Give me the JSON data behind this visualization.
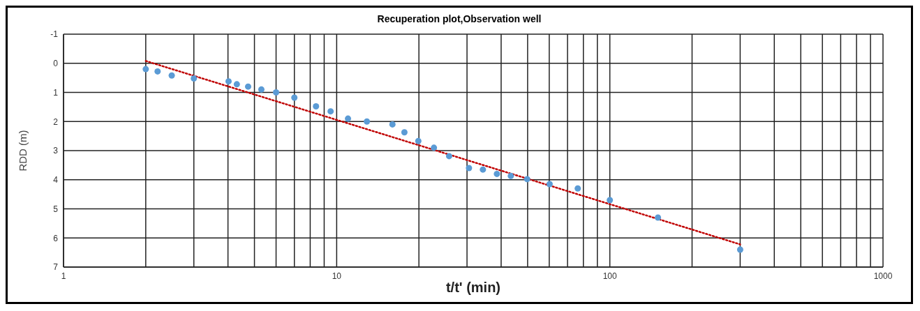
{
  "chart_data": {
    "type": "scatter",
    "title": "Recuperation plot,Observation well",
    "xlabel": "t/t' (min)",
    "ylabel": "RDD (m)",
    "log": "x",
    "xlim": [
      1,
      1000
    ],
    "xticks": [
      1,
      {
        "value": 2,
        "label": null
      },
      {
        "value": 3,
        "label": null
      },
      {
        "value": 4,
        "label": null
      },
      {
        "value": 5,
        "label": null
      },
      {
        "value": 6,
        "label": null
      },
      {
        "value": 7,
        "label": null
      },
      {
        "value": 8,
        "label": null
      },
      {
        "value": 9,
        "label": null
      },
      10,
      {
        "value": 20,
        "label": null
      },
      {
        "value": 30,
        "label": null
      },
      {
        "value": 40,
        "label": null
      },
      {
        "value": 50,
        "label": null
      },
      {
        "value": 60,
        "label": null
      },
      {
        "value": 70,
        "label": null
      },
      {
        "value": 80,
        "label": null
      },
      {
        "value": 90,
        "label": null
      },
      100,
      {
        "value": 200,
        "label": null
      },
      {
        "value": 300,
        "label": null
      },
      {
        "value": 400,
        "label": null
      },
      {
        "value": 500,
        "label": null
      },
      {
        "value": 600,
        "label": null
      },
      {
        "value": 700,
        "label": null
      },
      {
        "value": 800,
        "label": null
      },
      {
        "value": 900,
        "label": null
      },
      1000
    ],
    "ylim": [
      7,
      -1
    ],
    "yticks": [
      -1,
      0,
      1,
      2,
      3,
      4,
      5,
      6,
      7
    ],
    "grid": true,
    "legend": false,
    "series": [
      {
        "color": "#5b9bd5",
        "marker": "circle",
        "x": [
          2.0,
          2.21,
          2.49,
          3.0,
          4.02,
          4.31,
          4.74,
          5.3,
          6.0,
          7.0,
          8.4,
          9.5,
          11.0,
          12.9,
          16.0,
          17.7,
          19.9,
          22.7,
          25.8,
          30.5,
          34.3,
          38.6,
          43.4,
          49.8,
          60.2,
          76.3,
          100,
          150,
          300
        ],
        "values": [
          0.2,
          0.28,
          0.42,
          0.52,
          0.62,
          0.72,
          0.8,
          0.9,
          1.0,
          1.18,
          1.48,
          1.65,
          1.9,
          2.0,
          2.1,
          2.37,
          2.67,
          2.9,
          3.19,
          3.6,
          3.65,
          3.8,
          3.87,
          3.98,
          4.15,
          4.3,
          4.7,
          5.3,
          6.4
        ]
      },
      {
        "type": "line",
        "color": "#c00000",
        "line_style": "dotted",
        "marker": "none",
        "x": [
          2,
          300
        ],
        "values": [
          -0.08,
          6.22
        ]
      }
    ]
  }
}
